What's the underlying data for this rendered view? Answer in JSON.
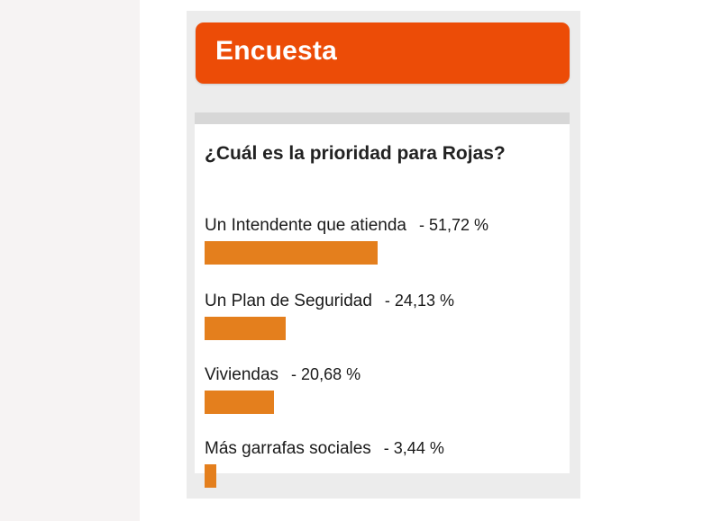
{
  "widget": {
    "title": "Encuesta",
    "accent_color": "#ec4c07",
    "bar_color": "#e47f1d"
  },
  "poll": {
    "question": "¿Cuál es la prioridad para Rojas?",
    "options": [
      {
        "label": "Un Intendente que atienda",
        "percent_text": "- 51,72 %",
        "percent": 51.72
      },
      {
        "label": "Un Plan de Seguridad",
        "percent_text": "- 24,13 %",
        "percent": 24.13
      },
      {
        "label": "Viviendas",
        "percent_text": "- 20,68 %",
        "percent": 20.68
      },
      {
        "label": "Más garrafas sociales",
        "percent_text": "- 3,44 %",
        "percent": 3.44
      }
    ]
  }
}
